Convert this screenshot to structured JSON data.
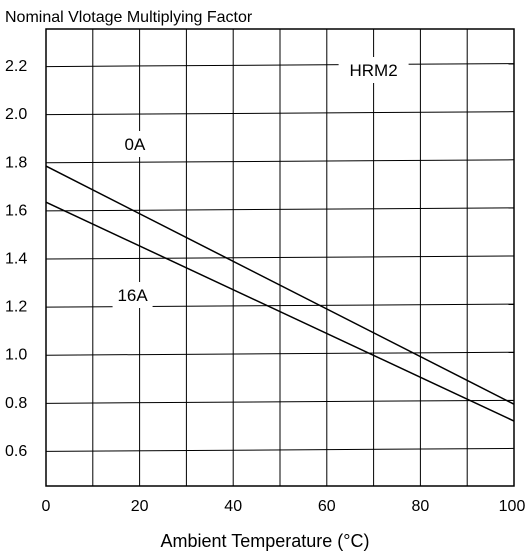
{
  "chart_data": {
    "type": "line",
    "title": "Nominal Vlotage Multiplying Factor",
    "xlabel": "Ambient Temperature (°C)",
    "ylabel": "",
    "model_label": "HRM2",
    "xlim": [
      0,
      100
    ],
    "ylim": [
      0.45,
      2.35
    ],
    "x_ticks": [
      0,
      20,
      40,
      60,
      80,
      100
    ],
    "x_tick_labels": [
      "0",
      "20",
      "40",
      "60",
      "80",
      "100"
    ],
    "y_ticks": [
      0.6,
      0.8,
      1.0,
      1.2,
      1.4,
      1.6,
      1.8,
      2.0,
      2.2
    ],
    "y_tick_labels": [
      "0.6",
      "0.8",
      "1.0",
      "1.2",
      "1.4",
      "1.6",
      "1.8",
      "2.0",
      "2.2"
    ],
    "grid": true,
    "series": [
      {
        "name": "0A",
        "x": [
          0,
          100
        ],
        "y": [
          1.78,
          0.79
        ]
      },
      {
        "name": "16A",
        "x": [
          0,
          100
        ],
        "y": [
          1.63,
          0.72
        ]
      }
    ]
  }
}
